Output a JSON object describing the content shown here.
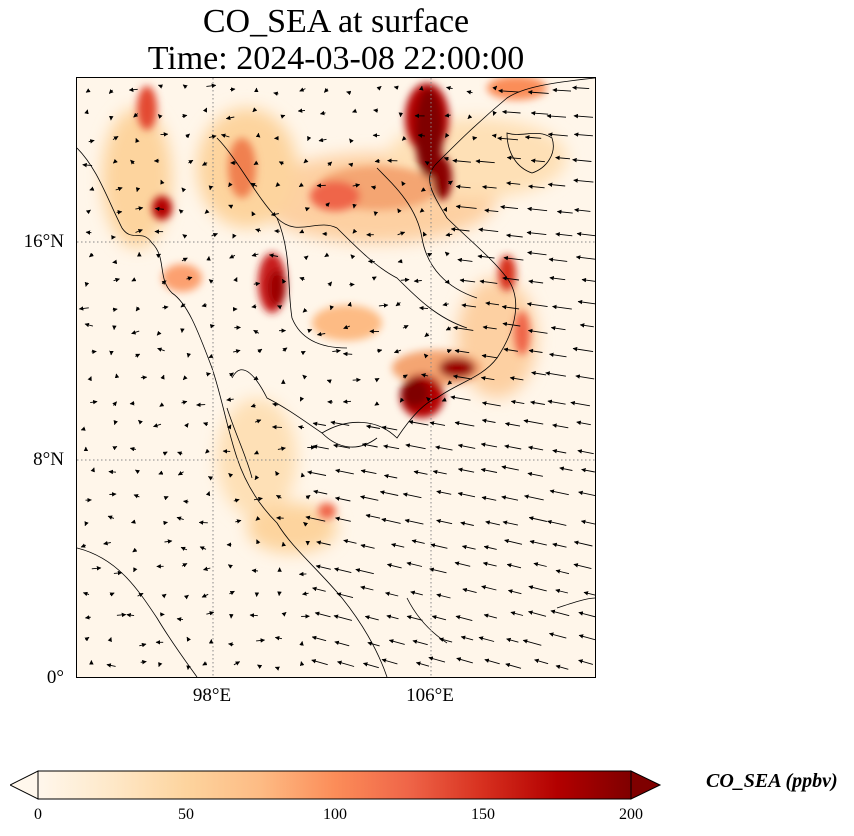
{
  "title": {
    "line1": "CO_SEA at surface",
    "line2": "Time: 2024-03-08 22:00:00"
  },
  "map": {
    "lat_labels": [
      "16°N",
      "8°N",
      "0°"
    ],
    "lon_labels": [
      "98°E",
      "106°E"
    ],
    "extent": {
      "lon_min": 93,
      "lon_max": 112,
      "lat_min": 0,
      "lat_max": 22
    },
    "gridlines": {
      "lats": [
        16,
        8
      ],
      "lons": [
        98,
        106
      ],
      "style": "dotted"
    },
    "field": "CO_SEA",
    "colormap": "OrRd",
    "hotspots": [
      {
        "region": "northern Vietnam / Red River delta",
        "level": "very high"
      },
      {
        "region": "southern Cambodia / Mekong delta",
        "level": "very high"
      },
      {
        "region": "central Thailand",
        "level": "high"
      },
      {
        "region": "Myanmar",
        "level": "high"
      },
      {
        "region": "central Vietnam coast",
        "level": "high"
      },
      {
        "region": "northern Laos",
        "level": "moderate"
      }
    ],
    "wind_vectors": "shown"
  },
  "colorbar": {
    "label": "CO_SEA (ppbv)",
    "ticks": [
      "0",
      "50",
      "100",
      "150",
      "200"
    ],
    "min": 0,
    "max": 200,
    "extend": "both",
    "colors": [
      "#fff7ec",
      "#fee8c8",
      "#fdd49e",
      "#fdbb84",
      "#fc8d59",
      "#ef6548",
      "#d7301f",
      "#b30000",
      "#7f0000"
    ]
  }
}
